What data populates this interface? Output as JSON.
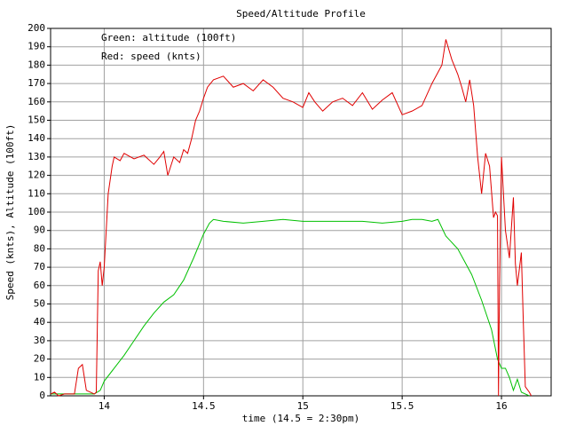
{
  "chart_data": {
    "type": "line",
    "title": "Speed/Altitude Profile",
    "x_label": "time (14.5 = 2:30pm)",
    "y_label": "Speed (knts), Altitude (100ft)",
    "annotations": [
      "Green: altitude (100ft)",
      "Red:   speed (knts)"
    ],
    "xlim": [
      13.73,
      16.25
    ],
    "ylim": [
      0,
      200
    ],
    "xticks": [
      14,
      14.5,
      15,
      15.5,
      16
    ],
    "yticks": [
      0,
      10,
      20,
      30,
      40,
      50,
      60,
      70,
      80,
      90,
      100,
      110,
      120,
      130,
      140,
      150,
      160,
      170,
      180,
      190,
      200
    ],
    "grid": true,
    "series": [
      {
        "name": "altitude",
        "color": "#00c000",
        "x": [
          13.73,
          13.95,
          13.98,
          14.0,
          14.05,
          14.1,
          14.15,
          14.2,
          14.25,
          14.3,
          14.35,
          14.4,
          14.45,
          14.5,
          14.53,
          14.55,
          14.6,
          14.7,
          14.8,
          14.9,
          15.0,
          15.1,
          15.2,
          15.3,
          15.4,
          15.5,
          15.55,
          15.6,
          15.65,
          15.68,
          15.72,
          15.78,
          15.85,
          15.9,
          15.95,
          15.98,
          16.0,
          16.02,
          16.04,
          16.06,
          16.08,
          16.1,
          16.12,
          16.14
        ],
        "values": [
          1,
          1,
          3,
          8,
          15,
          22,
          30,
          38,
          45,
          51,
          55,
          63,
          75,
          88,
          94,
          96,
          95,
          94,
          95,
          96,
          95,
          95,
          95,
          95,
          94,
          95,
          96,
          96,
          95,
          96,
          87,
          80,
          66,
          52,
          36,
          20,
          15,
          15,
          10,
          3,
          9,
          2,
          1,
          0
        ]
      },
      {
        "name": "speed",
        "color": "#e00000",
        "x": [
          13.73,
          13.75,
          13.77,
          13.8,
          13.85,
          13.87,
          13.89,
          13.91,
          13.95,
          13.96,
          13.97,
          13.98,
          13.99,
          14.0,
          14.02,
          14.04,
          14.05,
          14.08,
          14.1,
          14.15,
          14.2,
          14.25,
          14.28,
          14.3,
          14.32,
          14.35,
          14.38,
          14.4,
          14.42,
          14.44,
          14.46,
          14.48,
          14.5,
          14.52,
          14.55,
          14.6,
          14.65,
          14.7,
          14.75,
          14.8,
          14.85,
          14.9,
          14.95,
          15.0,
          15.03,
          15.06,
          15.1,
          15.15,
          15.2,
          15.25,
          15.3,
          15.35,
          15.4,
          15.45,
          15.5,
          15.55,
          15.6,
          15.65,
          15.7,
          15.72,
          15.75,
          15.78,
          15.8,
          15.82,
          15.84,
          15.86,
          15.88,
          15.9,
          15.92,
          15.94,
          15.96,
          15.97,
          15.98,
          15.985,
          15.99,
          16.0,
          16.02,
          16.04,
          16.06,
          16.07,
          16.08,
          16.1,
          16.11,
          16.12,
          16.14,
          16.15
        ],
        "values": [
          1,
          2,
          0,
          1,
          1,
          15,
          17,
          3,
          1,
          2,
          68,
          73,
          60,
          70,
          110,
          125,
          130,
          128,
          132,
          129,
          131,
          126,
          130,
          133,
          120,
          130,
          127,
          134,
          132,
          140,
          150,
          155,
          162,
          168,
          172,
          174,
          168,
          170,
          166,
          172,
          168,
          162,
          160,
          157,
          165,
          160,
          155,
          160,
          162,
          158,
          165,
          156,
          161,
          165,
          153,
          155,
          158,
          170,
          180,
          194,
          183,
          175,
          168,
          160,
          172,
          158,
          130,
          110,
          132,
          125,
          97,
          100,
          98,
          0,
          60,
          130,
          90,
          75,
          108,
          72,
          60,
          78,
          40,
          5,
          2,
          0
        ]
      }
    ]
  }
}
